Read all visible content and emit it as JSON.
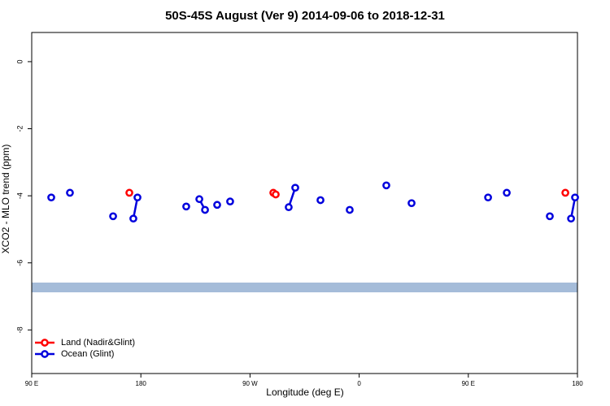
{
  "chart_data": {
    "type": "line",
    "title": "50S-45S August (Ver 9)   2014-09-06 to 2018-12-31",
    "x_label": "Longitude (deg E)",
    "y_label": "XCO2 - MLO trend (ppm)",
    "xlim": [
      90,
      540
    ],
    "ylim": [
      -9.3,
      0.87
    ],
    "xticks": [
      {
        "value": 90,
        "label": "90 E"
      },
      {
        "value": 180,
        "label": "180"
      },
      {
        "value": 270,
        "label": "90 W"
      },
      {
        "value": 360,
        "label": "0"
      },
      {
        "value": 450,
        "label": "90 E"
      },
      {
        "value": 540,
        "label": "180"
      }
    ],
    "yticks": [
      -8,
      -6,
      -4,
      -2,
      0
    ],
    "legend": "bottom-left",
    "series": [
      {
        "name": "Land (Nadir&Glint)",
        "color": "#ff0000",
        "x": [
          170.5,
          null,
          289.2,
          291.2,
          null,
          530
        ],
        "values": [
          -3.91,
          null,
          -3.91,
          -3.96,
          null,
          -3.91
        ]
      },
      {
        "name": "Ocean (Glint)",
        "color": "#0000dd",
        "x": [
          106.1,
          null,
          121.5,
          null,
          157.1,
          null,
          173.8,
          177.2,
          null,
          217.4,
          null,
          228.2,
          232.9,
          null,
          242.9,
          null,
          253.6,
          null,
          301.9,
          307.3,
          null,
          328.1,
          null,
          352.2,
          null,
          382.4,
          null,
          403.2,
          null,
          466.3,
          null,
          481.7,
          null,
          517.2,
          null,
          534.7,
          538.0
        ],
        "values": [
          -4.05,
          null,
          -3.91,
          null,
          -4.61,
          null,
          -4.68,
          -4.05,
          null,
          -4.32,
          null,
          -4.1,
          -4.42,
          null,
          -4.27,
          null,
          -4.17,
          null,
          -4.34,
          -3.76,
          null,
          -4.13,
          null,
          -4.42,
          null,
          -3.69,
          null,
          -4.22,
          null,
          -4.05,
          null,
          -3.91,
          null,
          -4.61,
          null,
          -4.68,
          -4.05
        ]
      }
    ]
  }
}
